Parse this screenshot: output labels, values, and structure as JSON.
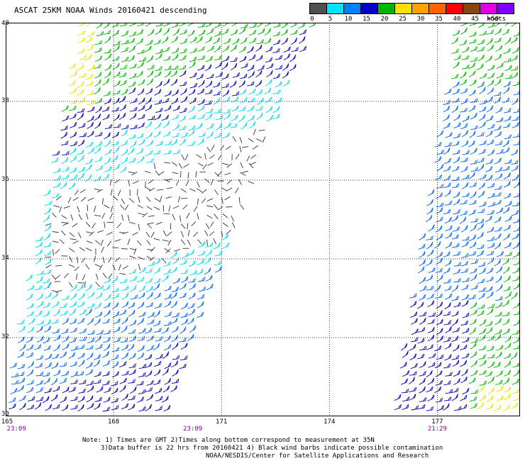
{
  "title": "ASCAT 25KM NOAA Winds 20160421 descending",
  "legend": {
    "ticks": [
      "0",
      "5",
      "10",
      "15",
      "20",
      "25",
      "30",
      "35",
      "40",
      "45",
      ">50"
    ],
    "units": "knots",
    "colors": [
      "#505050",
      "#00e5ff",
      "#0080ff",
      "#0000c8",
      "#00b400",
      "#ffe000",
      "#ffa000",
      "#ff6400",
      "#ff0000",
      "#8b4513",
      "#e000e0",
      "#8000ff"
    ]
  },
  "map": {
    "lat_labels": [
      "40",
      "38",
      "36",
      "34",
      "32",
      "30"
    ],
    "lat_values": [
      40,
      38,
      36,
      34,
      32,
      30
    ],
    "lon_labels": [
      "165",
      "168",
      "171",
      "174",
      "177"
    ],
    "lon_values": [
      165,
      168,
      171,
      174,
      177
    ],
    "time_labels": [
      "23:09",
      "23:09",
      "21:29"
    ],
    "time_lons": [
      165.3,
      170.2,
      177
    ]
  },
  "notes": {
    "line1": "Note: 1) Times are GMT 2)Times along bottom correspond to measurement at 35N",
    "line2": "3)Data buffer is 22 hrs from 20160421 4) Black wind barbs indicate possible contamination"
  },
  "credit": "NOAA/NESDIS/Center for Satellite Applications and Research"
}
